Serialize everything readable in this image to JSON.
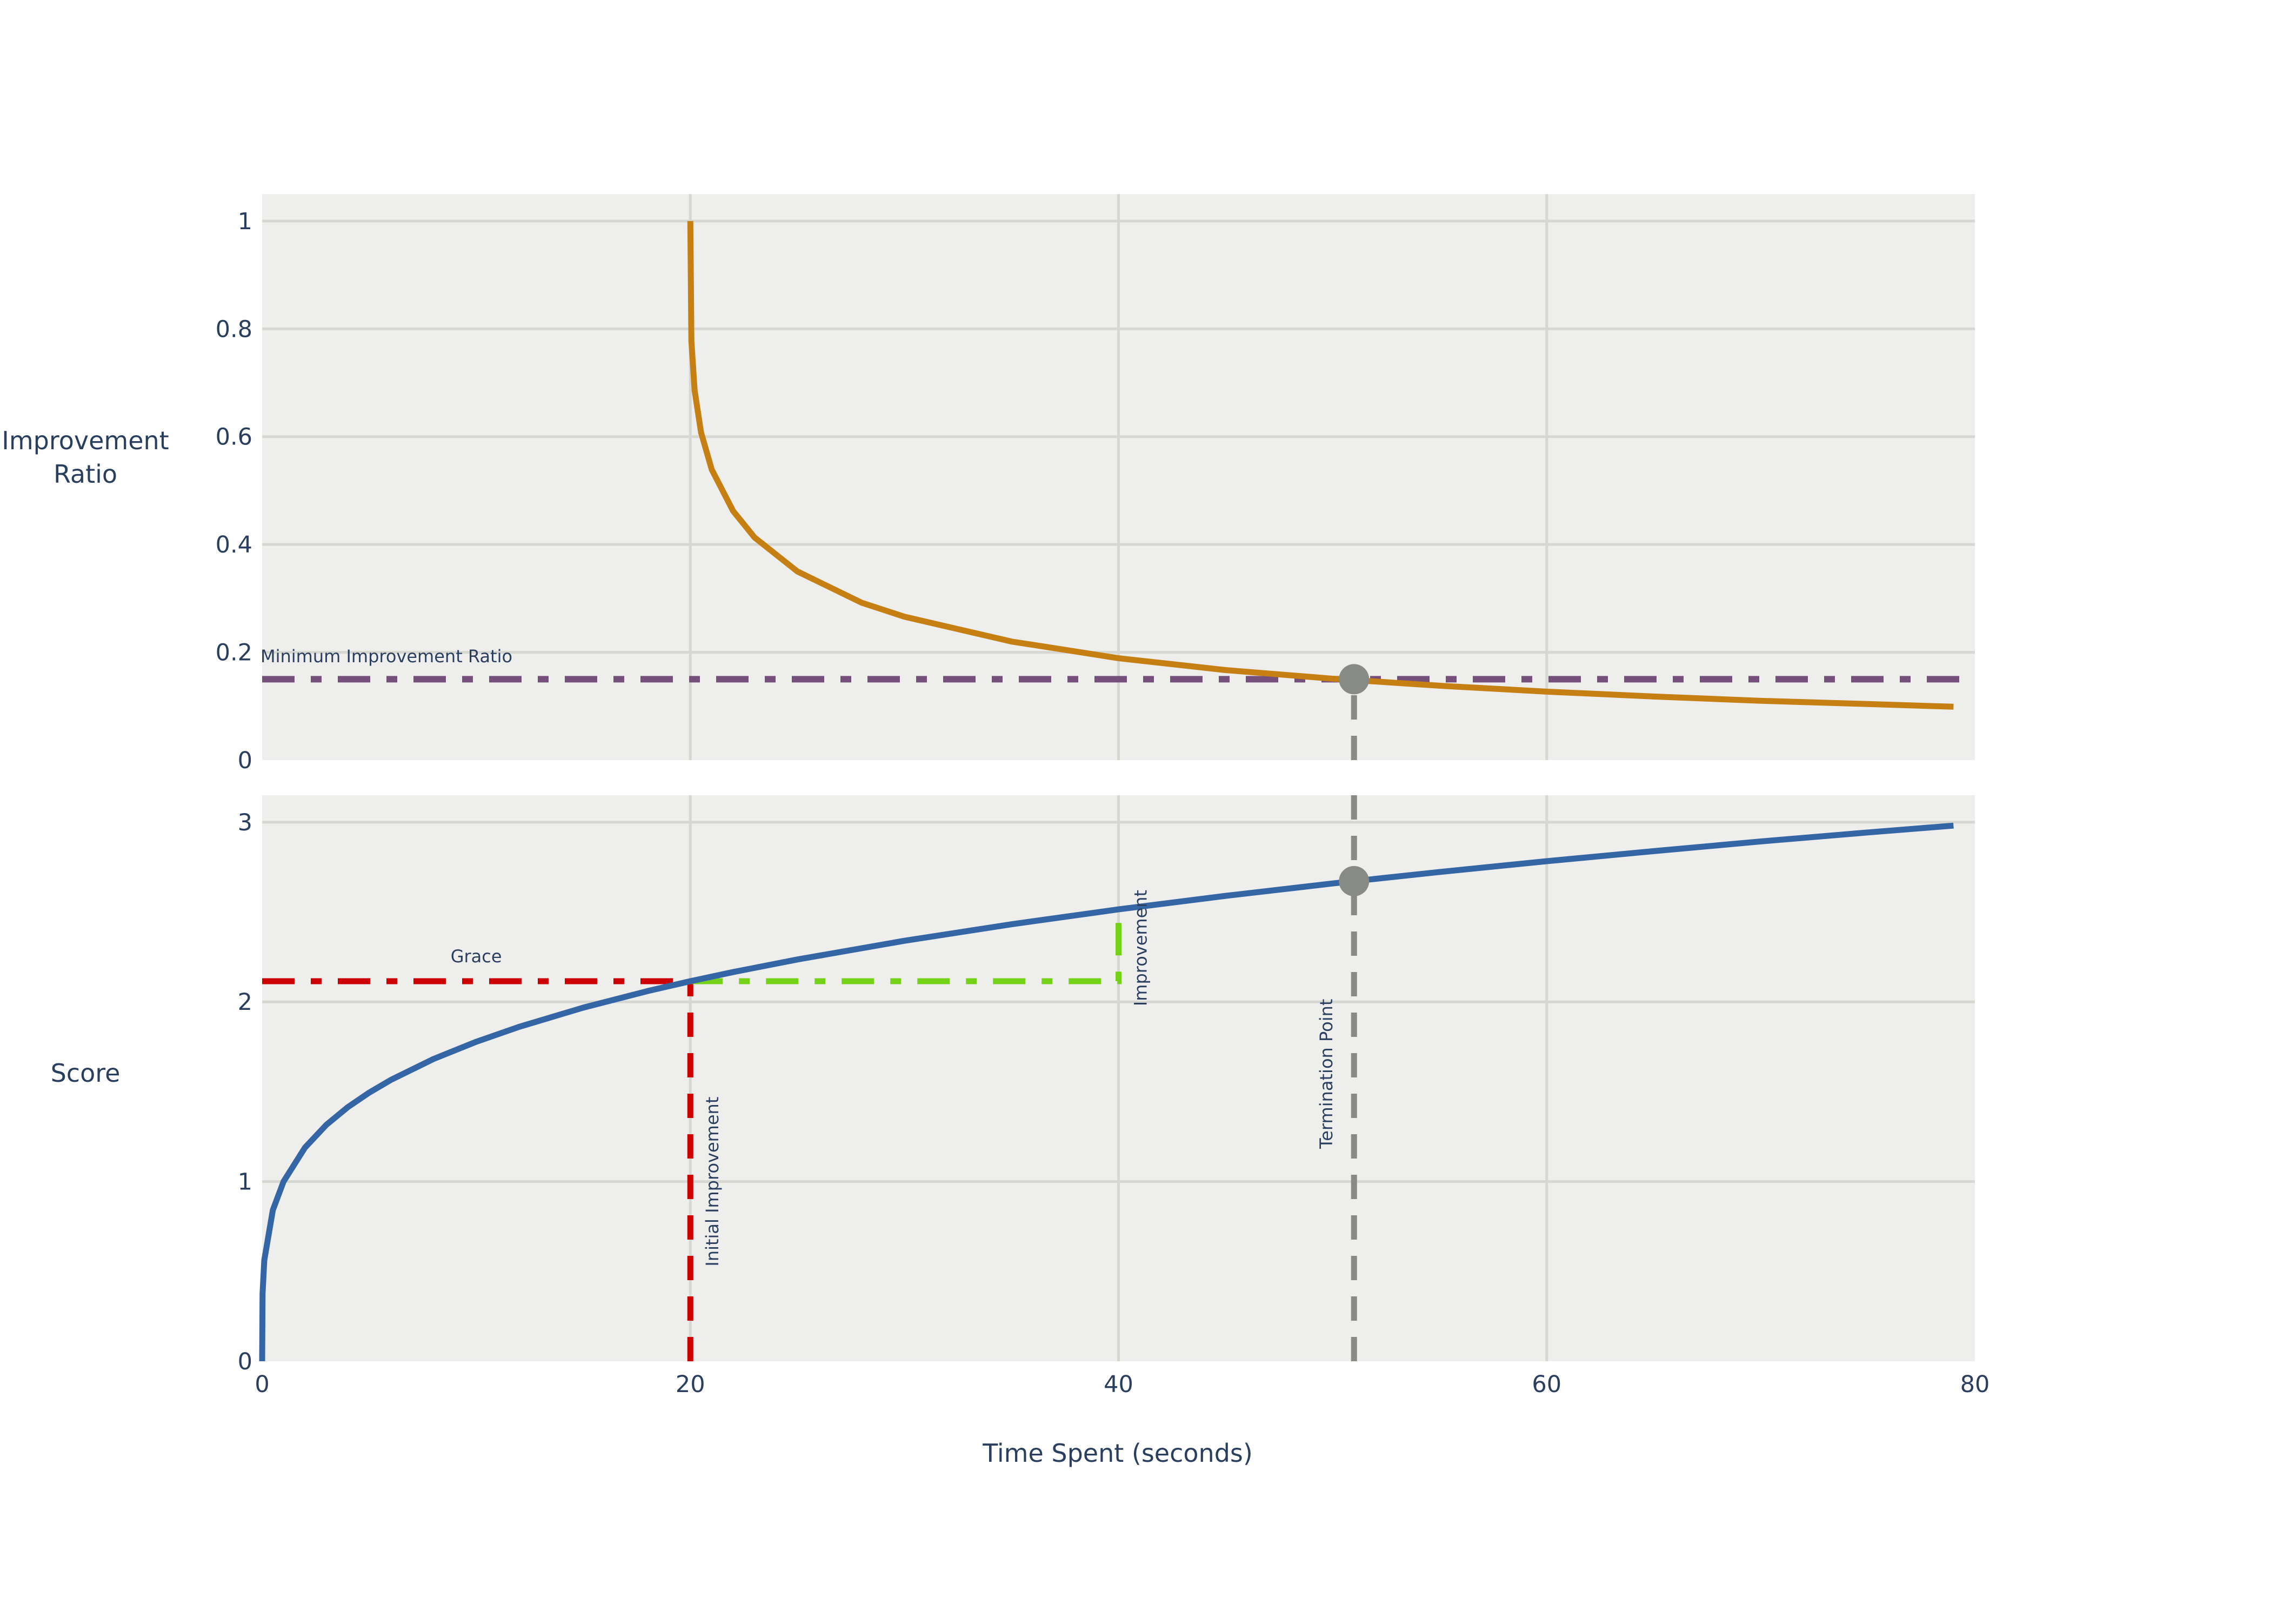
{
  "chart_data": [
    {
      "type": "line",
      "panel": "top",
      "ylabel": "Improvement Ratio",
      "xlim": [
        0,
        80
      ],
      "ylim": [
        0,
        1.05
      ],
      "yticks": [
        "0",
        "0.2",
        "0.4",
        "0.6",
        "0.8",
        "1"
      ],
      "grid": true,
      "series": [
        {
          "color": "#c57f12",
          "x": [
            20,
            20.05,
            20.2,
            20.5,
            21,
            22,
            23,
            25,
            28,
            30,
            35,
            40,
            45,
            50,
            55,
            60,
            65,
            70,
            75,
            79
          ],
          "y": [
            1.0,
            0.777,
            0.686,
            0.608,
            0.539,
            0.462,
            0.413,
            0.35,
            0.292,
            0.266,
            0.22,
            0.189,
            0.167,
            0.151,
            0.138,
            0.127,
            0.118,
            0.11,
            0.104,
            0.099
          ]
        }
      ],
      "threshold": {
        "label": "Minimum Improvement Ratio",
        "y": 0.15,
        "color": "#75507b",
        "dash": "dashdot"
      },
      "marker": {
        "x": 51,
        "y": 0.15,
        "color": "#888a85"
      }
    },
    {
      "type": "line",
      "panel": "bottom",
      "ylabel": "Score",
      "xlabel": "Time Spent (seconds)",
      "xlim": [
        0,
        80
      ],
      "ylim": [
        0,
        3.15
      ],
      "xticks": [
        "0",
        "20",
        "40",
        "60",
        "80"
      ],
      "yticks": [
        "0",
        "1",
        "2",
        "3"
      ],
      "grid": true,
      "series": [
        {
          "color": "#3465a4",
          "x": [
            0,
            0.02,
            0.1,
            0.5,
            1,
            2,
            3,
            4,
            5,
            6,
            8,
            10,
            12,
            15,
            18,
            20,
            22,
            25,
            30,
            35,
            40,
            45,
            50,
            55,
            60,
            65,
            70,
            75,
            79
          ],
          "y": [
            0,
            0.376,
            0.562,
            0.841,
            1.0,
            1.189,
            1.316,
            1.414,
            1.495,
            1.565,
            1.682,
            1.778,
            1.861,
            1.968,
            2.06,
            2.115,
            2.166,
            2.236,
            2.34,
            2.432,
            2.515,
            2.59,
            2.659,
            2.723,
            2.783,
            2.839,
            2.893,
            2.943,
            2.981
          ]
        }
      ],
      "annotations": [
        {
          "label": "Grace",
          "color": "#cc0000",
          "dash": "dashdot",
          "x": [
            0,
            20
          ],
          "y": [
            2.115,
            2.115
          ]
        },
        {
          "label": "Initial Improvement",
          "color": "#cc0000",
          "dash": "dash",
          "x": [
            20,
            20
          ],
          "y": [
            0,
            2.115
          ]
        },
        {
          "label": "Improvement",
          "color": "#73d216",
          "dash": "dashdot",
          "x": [
            20,
            40,
            40
          ],
          "y": [
            2.115,
            2.115,
            2.515
          ]
        },
        {
          "label": "Termination Point",
          "color": "#888a85",
          "dash": "dash",
          "x": [
            51,
            51
          ],
          "y": [
            0,
            2.672
          ]
        }
      ],
      "marker": {
        "x": 51,
        "y": 2.672,
        "color": "#888a85"
      }
    }
  ]
}
